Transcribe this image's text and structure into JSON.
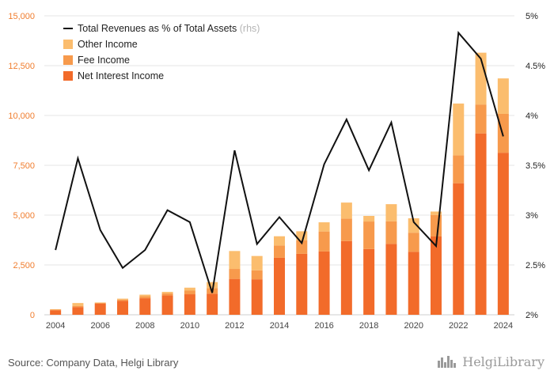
{
  "chart_data": {
    "type": "bar",
    "stacked": true,
    "categories": [
      "2004",
      "2005",
      "2006",
      "2007",
      "2008",
      "2009",
      "2010",
      "2011",
      "2012",
      "2013",
      "2014",
      "2015",
      "2016",
      "2017",
      "2018",
      "2019",
      "2020",
      "2021",
      "2022",
      "2023",
      "2024"
    ],
    "x_tick_labels": [
      "2004",
      "2006",
      "2008",
      "2010",
      "2012",
      "2014",
      "2016",
      "2018",
      "2020",
      "2022",
      "2024"
    ],
    "series": [
      {
        "name": "Net Interest Income",
        "color": "#f26b2a",
        "values": [
          230,
          390,
          560,
          700,
          830,
          970,
          1030,
          1060,
          1800,
          1780,
          2860,
          3060,
          3180,
          3700,
          3300,
          3560,
          3160,
          3930,
          6600,
          9100,
          8130
        ]
      },
      {
        "name": "Fee Income",
        "color": "#f79a4c",
        "values": [
          30,
          60,
          40,
          60,
          100,
          110,
          180,
          280,
          500,
          450,
          620,
          670,
          1000,
          1130,
          1380,
          1130,
          960,
          1080,
          1400,
          1450,
          1950
        ]
      },
      {
        "name": "Other Income",
        "color": "#fbbd6e",
        "values": [
          20,
          140,
          20,
          50,
          80,
          70,
          150,
          300,
          900,
          720,
          460,
          460,
          460,
          800,
          280,
          860,
          720,
          170,
          2600,
          2600,
          1780
        ]
      }
    ],
    "line_series": {
      "name": "Total Revenues as % of Total Assets",
      "name_suffix": "(rhs)",
      "color": "#111111",
      "axis": "right",
      "values": [
        2.65,
        3.57,
        2.85,
        2.47,
        2.65,
        3.05,
        2.93,
        2.22,
        3.65,
        2.71,
        2.98,
        2.72,
        3.51,
        3.96,
        3.45,
        3.93,
        2.93,
        2.69,
        4.83,
        4.57,
        3.79
      ]
    },
    "y_left": {
      "ylim": [
        0,
        15000
      ],
      "ticks": [
        0,
        2500,
        5000,
        7500,
        10000,
        12500,
        15000
      ],
      "tick_labels": [
        "0",
        "2,500",
        "5,000",
        "7,500",
        "10,000",
        "12,500",
        "15,000"
      ],
      "color": "#f07d2e"
    },
    "y_right": {
      "ylim": [
        2,
        5
      ],
      "ticks": [
        2,
        2.5,
        3,
        3.5,
        4,
        4.5,
        5
      ],
      "tick_labels": [
        "2%",
        "2.5%",
        "3%",
        "3.5%",
        "4%",
        "4.5%",
        "5%"
      ]
    },
    "grid": true,
    "legend": "top-left"
  },
  "footer": {
    "source": "Source: Company Data, Helgi Library",
    "logo_text": "HelgiLibrary"
  }
}
